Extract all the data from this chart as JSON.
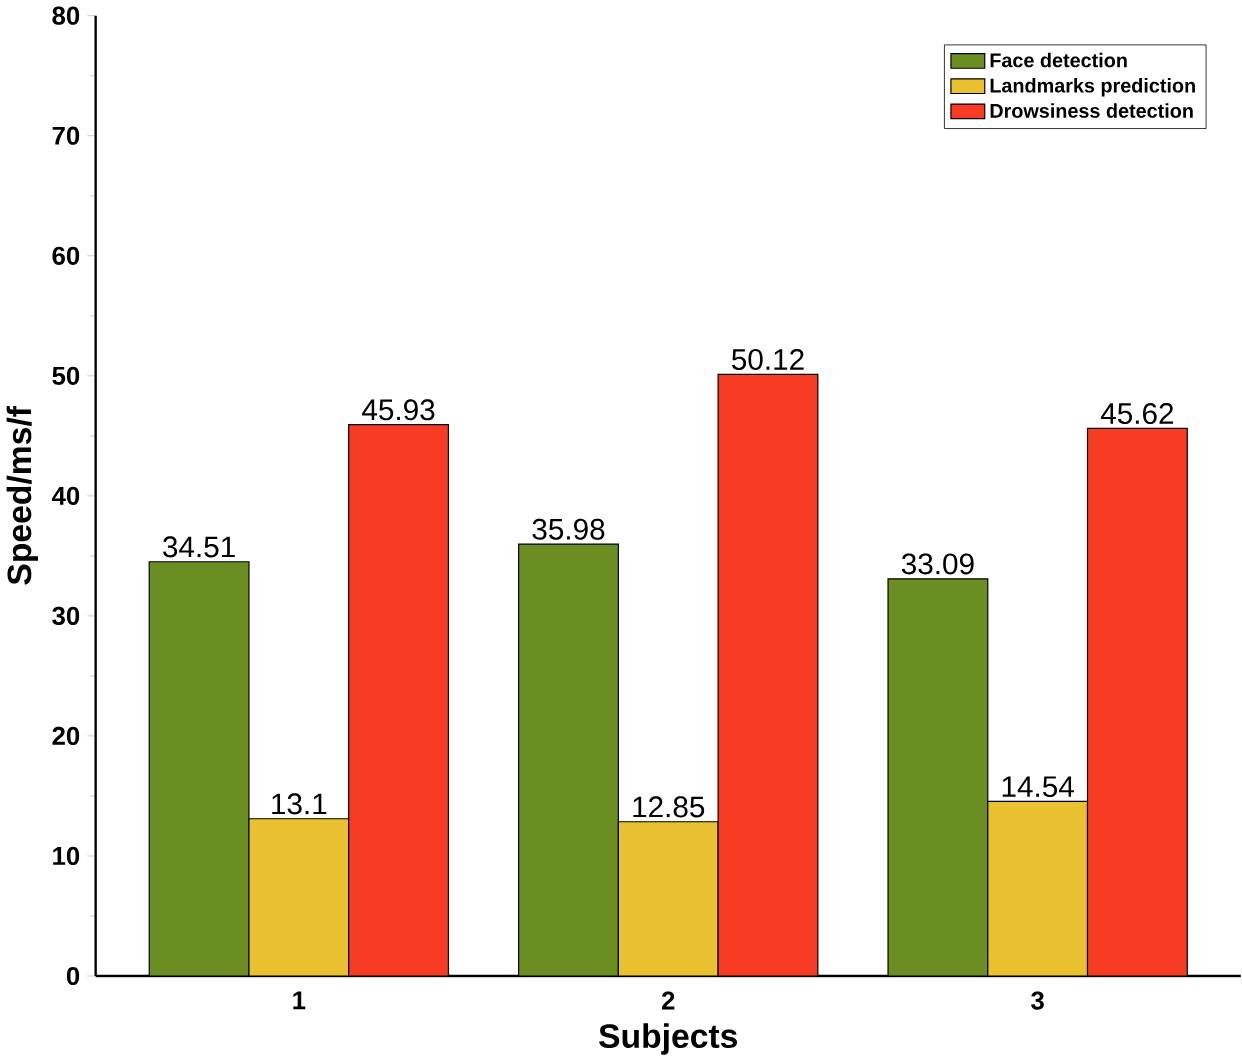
{
  "chart_data": {
    "type": "bar",
    "xlabel": "Subjects",
    "ylabel": "Speed/ms/f",
    "categories": [
      "1",
      "2",
      "3"
    ],
    "series": [
      {
        "name": "Face detection",
        "color": "#6b8e23",
        "values": [
          34.51,
          35.98,
          33.09
        ]
      },
      {
        "name": "Landmarks prediction",
        "color": "#e8c030",
        "values": [
          13.1,
          12.85,
          14.54
        ]
      },
      {
        "name": "Drowsiness detection",
        "color": "#f83c24",
        "values": [
          45.93,
          50.12,
          45.62
        ]
      }
    ],
    "ylim": [
      0,
      80
    ],
    "yticks": [
      0,
      10,
      20,
      30,
      40,
      50,
      60,
      70,
      80
    ],
    "legend": "top right",
    "data_labels": true,
    "grid": false
  }
}
